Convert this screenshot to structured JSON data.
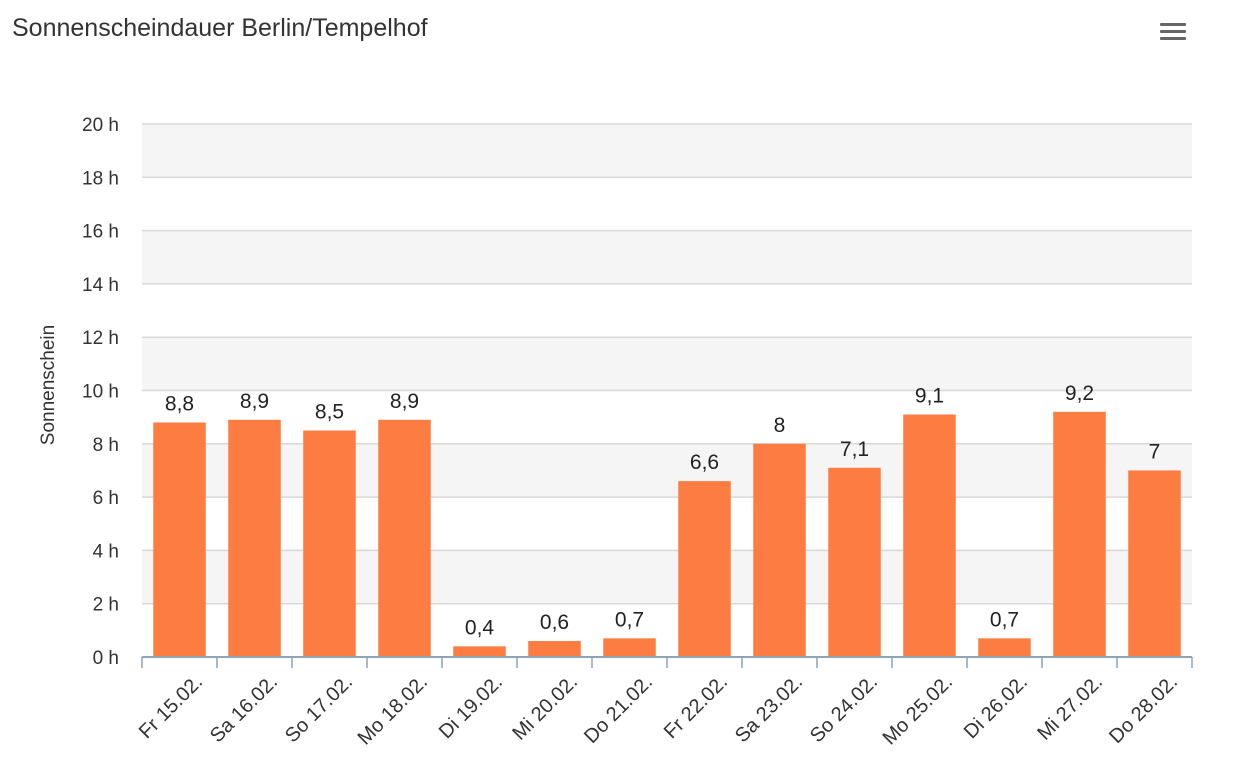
{
  "chart_title": "Sonnenscheindauer Berlin/Tempelhof",
  "menu": {
    "icon": "hamburger-menu-icon"
  },
  "chart_data": {
    "type": "bar",
    "title": "Sonnenscheindauer Berlin/Tempelhof",
    "xlabel": "",
    "ylabel": "Sonnenschein",
    "ylim": [
      0,
      20
    ],
    "yticks": [
      0,
      2,
      4,
      6,
      8,
      10,
      12,
      14,
      16,
      18,
      20
    ],
    "ytick_suffix": " h",
    "grid": true,
    "legend": "none",
    "categories": [
      "Fr 15.02.",
      "Sa 16.02.",
      "So 17.02.",
      "Mo 18.02.",
      "Di 19.02.",
      "Mi 20.02.",
      "Do 21.02.",
      "Fr 22.02.",
      "Sa 23.02.",
      "So 24.02.",
      "Mo 25.02.",
      "Di 26.02.",
      "Mi 27.02.",
      "Do 28.02."
    ],
    "values": [
      8.8,
      8.9,
      8.5,
      8.9,
      0.4,
      0.6,
      0.7,
      6.6,
      8,
      7.1,
      9.1,
      0.7,
      9.2,
      7
    ],
    "data_labels": [
      "8,8",
      "8,9",
      "8,5",
      "8,9",
      "0,4",
      "0,6",
      "0,7",
      "6,6",
      "8",
      "7,1",
      "9,1",
      "0,7",
      "9,2",
      "7"
    ],
    "colors": {
      "bar": "#fd7c41",
      "band": "#f5f5f5",
      "grid": "#d8d8d8",
      "axis": "#8ea3b3"
    }
  }
}
